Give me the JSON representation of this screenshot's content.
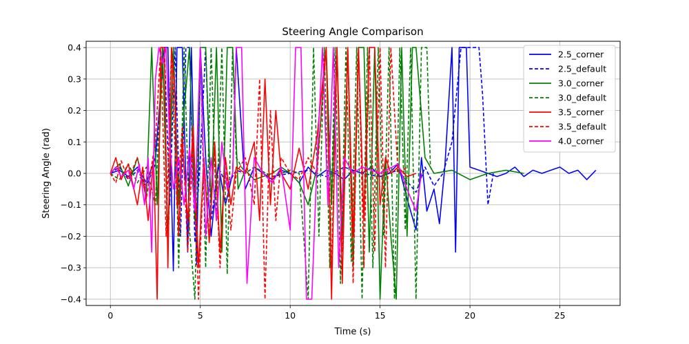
{
  "chart_data": {
    "type": "line",
    "title": "Steering Angle Comparison",
    "xlabel": "Time (s)",
    "ylabel": "Steering Angle (rad)",
    "xlim": [
      -1.35,
      28.35
    ],
    "ylim": [
      -0.42,
      0.42
    ],
    "xticks": [
      0,
      5,
      10,
      15,
      20,
      25
    ],
    "yticks": [
      -0.4,
      -0.3,
      -0.2,
      -0.1,
      0.0,
      0.1,
      0.2,
      0.3,
      0.4
    ],
    "xtick_labels": [
      "0",
      "5",
      "10",
      "15",
      "20",
      "25"
    ],
    "ytick_labels": [
      "−0.4",
      "−0.3",
      "−0.2",
      "−0.1",
      "0.0",
      "0.1",
      "0.2",
      "0.3",
      "0.4"
    ],
    "grid": true,
    "legend_position": "top-right",
    "series": [
      {
        "name": "2.5_corner",
        "color": "#0000ff",
        "dash": "solid",
        "x": [
          0,
          0.5,
          1.0,
          1.5,
          2.0,
          2.5,
          3.0,
          3.2,
          3.5,
          3.7,
          4.0,
          4.3,
          4.5,
          4.8,
          5.0,
          5.3,
          5.6,
          6.0,
          6.4,
          6.8,
          7.0,
          7.5,
          8.0,
          8.5,
          9.0,
          9.5,
          10.0,
          10.5,
          11.0,
          11.5,
          12.0,
          12.5,
          13.0,
          13.5,
          14.0,
          14.5,
          15.0,
          15.5,
          16.0,
          16.5,
          17.0,
          17.3,
          17.6,
          18.0,
          18.3,
          18.6,
          19.0,
          19.2,
          19.4,
          19.6,
          19.8,
          20.0,
          20.5,
          21.0,
          21.5,
          22.0,
          22.5,
          23.0,
          23.5,
          24.0,
          24.5,
          25.0,
          25.5,
          26.0,
          26.5,
          27.0
        ],
        "y": [
          0.0,
          0.01,
          -0.01,
          0.02,
          -0.03,
          0.05,
          0.4,
          0.4,
          -0.31,
          0.4,
          0.4,
          -0.25,
          0.4,
          -0.29,
          0.4,
          0.05,
          -0.2,
          0.03,
          -0.1,
          0.0,
          0.4,
          -0.05,
          0.02,
          0.0,
          -0.02,
          0.01,
          0.0,
          -0.03,
          0.02,
          -0.01,
          0.01,
          0.0,
          -0.02,
          0.01,
          0.0,
          0.02,
          -0.01,
          0.0,
          0.03,
          -0.08,
          -0.18,
          0.05,
          -0.12,
          -0.05,
          -0.16,
          0.02,
          0.4,
          -0.25,
          0.4,
          0.4,
          0.4,
          0.02,
          0.01,
          0.0,
          -0.01,
          0.0,
          0.02,
          -0.01,
          0.01,
          0.0,
          0.01,
          0.02,
          0.0,
          0.01,
          -0.02,
          0.01
        ]
      },
      {
        "name": "2.5_default",
        "color": "#0000ff",
        "dash": "dashed",
        "x": [
          0,
          0.5,
          1.0,
          1.5,
          2.0,
          2.5,
          3.0,
          3.3,
          3.6,
          3.9,
          4.2,
          4.4,
          4.7,
          5.0,
          5.3,
          5.6,
          6.0,
          6.5,
          7.0,
          7.5,
          8.0,
          9.0,
          10.0,
          11.0,
          12.0,
          13.0,
          14.0,
          15.0,
          16.0,
          17.0,
          17.5,
          18.0,
          18.5,
          19.0,
          19.5,
          20.0,
          20.3,
          20.5,
          20.7,
          21.0,
          21.3
        ],
        "y": [
          0.0,
          0.02,
          -0.02,
          0.01,
          -0.04,
          0.03,
          0.4,
          -0.1,
          0.4,
          -0.2,
          0.4,
          0.4,
          -0.22,
          0.05,
          0.4,
          -0.15,
          0.02,
          -0.04,
          0.01,
          0.0,
          0.02,
          -0.01,
          0.0,
          0.01,
          -0.01,
          0.02,
          0.0,
          -0.01,
          0.01,
          -0.06,
          0.02,
          -0.04,
          0.0,
          0.1,
          0.4,
          0.4,
          0.4,
          0.4,
          0.25,
          -0.1,
          0.0
        ]
      },
      {
        "name": "3.0_corner",
        "color": "#008000",
        "dash": "solid",
        "x": [
          0,
          0.5,
          1.0,
          1.5,
          2.0,
          2.3,
          2.6,
          2.9,
          3.2,
          3.5,
          3.8,
          4.1,
          4.4,
          4.7,
          5.0,
          5.3,
          5.6,
          5.9,
          6.2,
          6.5,
          6.8,
          7.1,
          7.5,
          8.0,
          9.0,
          9.5,
          10.0,
          10.5,
          11.0,
          11.5,
          12.0,
          12.3,
          12.6,
          12.9,
          13.2,
          13.5,
          13.8,
          14.1,
          14.4,
          14.7,
          15.0,
          15.3,
          15.6,
          15.9,
          16.2,
          16.5,
          16.8,
          17.0,
          17.5,
          18.0,
          19.0,
          20.0,
          21.0,
          22.0,
          23.0
        ],
        "y": [
          0.0,
          0.03,
          -0.04,
          0.05,
          -0.08,
          0.4,
          -0.1,
          0.4,
          -0.2,
          0.4,
          -0.1,
          0.2,
          0.4,
          -0.15,
          0.4,
          0.4,
          -0.1,
          0.4,
          -0.25,
          0.4,
          0.4,
          -0.05,
          0.01,
          -0.02,
          0.0,
          0.02,
          0.0,
          -0.03,
          -0.1,
          0.02,
          0.4,
          -0.1,
          0.4,
          -0.2,
          0.4,
          -0.3,
          0.4,
          0.4,
          -0.25,
          0.4,
          -0.4,
          0.05,
          -0.2,
          -0.4,
          0.4,
          -0.2,
          0.4,
          0.4,
          0.05,
          0.0,
          0.01,
          -0.02,
          0.0,
          0.01,
          0.0
        ]
      },
      {
        "name": "3.0_default",
        "color": "#008000",
        "dash": "dashed",
        "x": [
          0,
          0.5,
          1.0,
          1.5,
          2.0,
          2.5,
          2.9,
          3.2,
          3.5,
          3.8,
          4.1,
          4.4,
          4.7,
          5.0,
          5.3,
          5.6,
          5.9,
          6.2,
          6.5,
          6.8,
          7.0,
          7.5,
          8.0,
          9.0,
          10.0,
          10.5,
          11.0,
          11.3,
          11.6,
          11.9,
          12.2,
          12.5,
          12.8,
          13.1,
          13.4,
          13.7,
          14.0,
          14.3,
          14.6,
          14.9,
          15.2,
          15.5,
          15.8,
          16.1,
          16.4,
          16.7,
          17.0,
          17.3,
          17.6,
          17.8,
          18.0
        ],
        "y": [
          0.0,
          -0.02,
          0.03,
          -0.03,
          0.02,
          -0.1,
          0.4,
          -0.25,
          0.4,
          -0.3,
          0.4,
          -0.18,
          -0.4,
          0.4,
          -0.3,
          0.4,
          -0.15,
          0.4,
          -0.32,
          0.4,
          0.05,
          0.0,
          0.02,
          -0.01,
          0.01,
          0.0,
          -0.4,
          0.4,
          -0.2,
          0.4,
          -0.3,
          0.4,
          -0.35,
          0.4,
          -0.28,
          0.4,
          -0.4,
          0.4,
          -0.3,
          0.4,
          -0.2,
          0.4,
          -0.4,
          0.4,
          -0.18,
          0.4,
          -0.4,
          0.4,
          0.4,
          0.02,
          0.0
        ]
      },
      {
        "name": "3.5_corner",
        "color": "#ff0000",
        "dash": "solid",
        "x": [
          0,
          0.3,
          0.6,
          1.0,
          1.5,
          1.8,
          2.1,
          2.4,
          2.6,
          2.8,
          3.0,
          3.2,
          3.4,
          3.6,
          3.8,
          4.0,
          4.3,
          4.6,
          4.9,
          5.2,
          5.5,
          5.8,
          6.1,
          6.4,
          6.7,
          7.0,
          7.5,
          8.0,
          8.3,
          8.6,
          8.9,
          9.2,
          9.5,
          10.0,
          10.5,
          11.0,
          11.5,
          12.0,
          12.3,
          12.6,
          12.9,
          13.2,
          13.5,
          13.8,
          14.1,
          14.4,
          14.7,
          15.0,
          15.3,
          15.6,
          16.0,
          16.5,
          17.0
        ],
        "y": [
          0.0,
          0.05,
          -0.02,
          0.03,
          -0.1,
          0.02,
          -0.15,
          0.05,
          -0.4,
          0.4,
          0.4,
          -0.3,
          0.4,
          0.25,
          -0.2,
          0.1,
          -0.15,
          0.15,
          -0.3,
          0.05,
          -0.22,
          0.1,
          -0.25,
          0.05,
          -0.1,
          0.02,
          0.0,
          0.1,
          -0.15,
          0.3,
          -0.1,
          0.2,
          0.0,
          -0.05,
          0.08,
          -0.05,
          0.12,
          0.4,
          -0.4,
          0.4,
          -0.35,
          0.4,
          -0.2,
          0.4,
          -0.15,
          0.4,
          0.4,
          -0.1,
          0.05,
          0.0,
          0.02,
          -0.01,
          0.0
        ]
      },
      {
        "name": "3.5_default",
        "color": "#ff0000",
        "dash": "dashed",
        "x": [
          0,
          0.3,
          0.6,
          1.0,
          1.5,
          2.0,
          2.5,
          2.8,
          3.1,
          3.4,
          3.7,
          4.0,
          4.3,
          4.6,
          4.9,
          5.2,
          5.5,
          5.8,
          6.1,
          6.4,
          6.7,
          7.0,
          7.5,
          8.0,
          8.3,
          8.6,
          8.9,
          9.2,
          9.5,
          10.0,
          10.5,
          11.0,
          11.5,
          12.0,
          12.3,
          12.6,
          12.9,
          13.2,
          13.5,
          13.8,
          14.1,
          14.4,
          14.7,
          15.0,
          15.3,
          15.6,
          16.0,
          16.5
        ],
        "y": [
          0.0,
          -0.03,
          0.04,
          -0.02,
          0.05,
          -0.08,
          0.1,
          0.4,
          -0.2,
          0.4,
          -0.1,
          0.15,
          -0.25,
          0.1,
          -0.4,
          0.05,
          -0.2,
          0.1,
          -0.3,
          0.05,
          -0.18,
          0.0,
          0.05,
          -0.1,
          0.3,
          -0.4,
          0.2,
          -0.15,
          0.05,
          0.0,
          -0.02,
          0.05,
          0.0,
          0.4,
          -0.3,
          0.4,
          -0.25,
          0.4,
          -0.35,
          0.4,
          -0.3,
          0.4,
          -0.25,
          0.4,
          -0.3,
          0.4,
          0.0,
          0.02
        ]
      },
      {
        "name": "4.0_corner",
        "color": "#ff00ff",
        "dash": "solid",
        "x": [
          0,
          0.3,
          0.6,
          1.0,
          1.3,
          1.6,
          1.9,
          2.1,
          2.3,
          2.5,
          2.7,
          2.9,
          3.1,
          3.3,
          3.5,
          3.8,
          4.1,
          4.4,
          4.7,
          5.0,
          5.3,
          5.6,
          5.9,
          6.2,
          6.5,
          6.8,
          7.0,
          7.3,
          7.6,
          8.0,
          8.5,
          9.0,
          9.5,
          10.0,
          10.3,
          10.6,
          10.9,
          11.2,
          11.5,
          11.8,
          12.1,
          12.4,
          12.7,
          13.0,
          13.5,
          14.0,
          15.0,
          16.0,
          16.5,
          17.0,
          17.3
        ],
        "y": [
          0.0,
          0.02,
          -0.01,
          0.01,
          -0.05,
          0.03,
          -0.1,
          0.05,
          -0.25,
          0.3,
          0.4,
          0.35,
          0.4,
          0.1,
          -0.05,
          0.05,
          -0.1,
          0.08,
          -0.12,
          0.4,
          -0.2,
          0.05,
          -0.15,
          0.1,
          -0.05,
          0.0,
          0.4,
          0.4,
          -0.35,
          0.05,
          0.0,
          -0.03,
          0.02,
          -0.18,
          0.4,
          0.4,
          -0.4,
          -0.4,
          0.05,
          0.4,
          -0.1,
          0.4,
          -0.3,
          0.05,
          0.0,
          0.02,
          0.0,
          0.03,
          -0.05,
          -0.12,
          0.0
        ]
      }
    ]
  }
}
